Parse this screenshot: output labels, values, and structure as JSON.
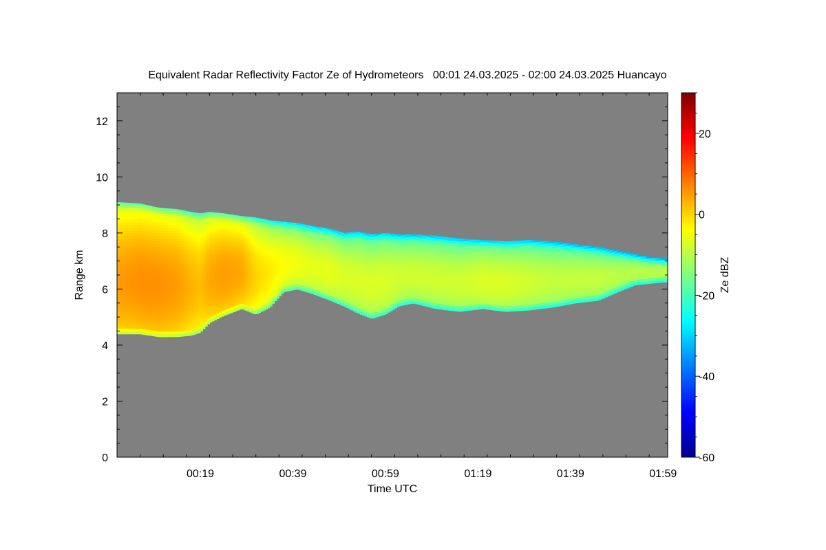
{
  "chart_data": {
    "type": "heatmap",
    "title": "Equivalent Radar Reflectivity Factor Ze of Hydrometeors   00:01 24.03.2025 - 02:00 24.03.2025 Huancayo",
    "xlabel": "Time UTC",
    "ylabel": "Range km",
    "x_tick_labels": [
      "00:19",
      "00:39",
      "00:59",
      "01:19",
      "01:39",
      "01:59"
    ],
    "x_tick_minutes": [
      19,
      39,
      59,
      79,
      99,
      119
    ],
    "xlim_minutes": [
      1,
      120
    ],
    "y_ticks": [
      0,
      2,
      4,
      6,
      8,
      10,
      12
    ],
    "ylim": [
      0,
      13
    ],
    "colorbar": {
      "label": "Ze dBZ",
      "ticks": [
        -60,
        -40,
        -20,
        0,
        20
      ],
      "range": [
        -60,
        30
      ],
      "colormap": "jet"
    },
    "background_color": "#808080",
    "echo_layer": {
      "time_minutes": [
        1,
        6,
        10,
        14,
        17,
        19,
        21,
        24,
        28,
        31,
        34,
        37,
        40,
        43,
        47,
        50,
        53,
        56,
        59,
        62,
        65,
        70,
        75,
        80,
        85,
        90,
        95,
        100,
        105,
        110,
        113,
        116,
        119
      ],
      "top_km": [
        9.1,
        9.05,
        8.9,
        8.85,
        8.75,
        8.7,
        8.75,
        8.7,
        8.6,
        8.55,
        8.45,
        8.4,
        8.35,
        8.25,
        8.15,
        8.0,
        8.05,
        7.95,
        8.0,
        7.95,
        7.95,
        7.9,
        7.8,
        7.75,
        7.7,
        7.75,
        7.7,
        7.6,
        7.5,
        7.35,
        7.25,
        7.15,
        7.1
      ],
      "base_km": [
        4.4,
        4.4,
        4.3,
        4.3,
        4.35,
        4.45,
        4.8,
        5.05,
        5.3,
        5.1,
        5.35,
        5.9,
        6.0,
        5.85,
        5.6,
        5.4,
        5.15,
        4.95,
        5.1,
        5.4,
        5.5,
        5.3,
        5.2,
        5.3,
        5.2,
        5.25,
        5.35,
        5.5,
        5.6,
        5.95,
        6.15,
        6.2,
        6.25
      ],
      "peak_dbz": [
        5,
        6,
        6,
        5,
        3,
        2,
        4,
        5,
        4,
        0,
        -2,
        -4,
        -5,
        -6,
        -6,
        -7,
        -7,
        -7,
        -7,
        -8,
        -8,
        -8,
        -8,
        -7,
        -7,
        -8,
        -9,
        -9,
        -9,
        -10,
        -10,
        -10,
        -10
      ]
    }
  }
}
